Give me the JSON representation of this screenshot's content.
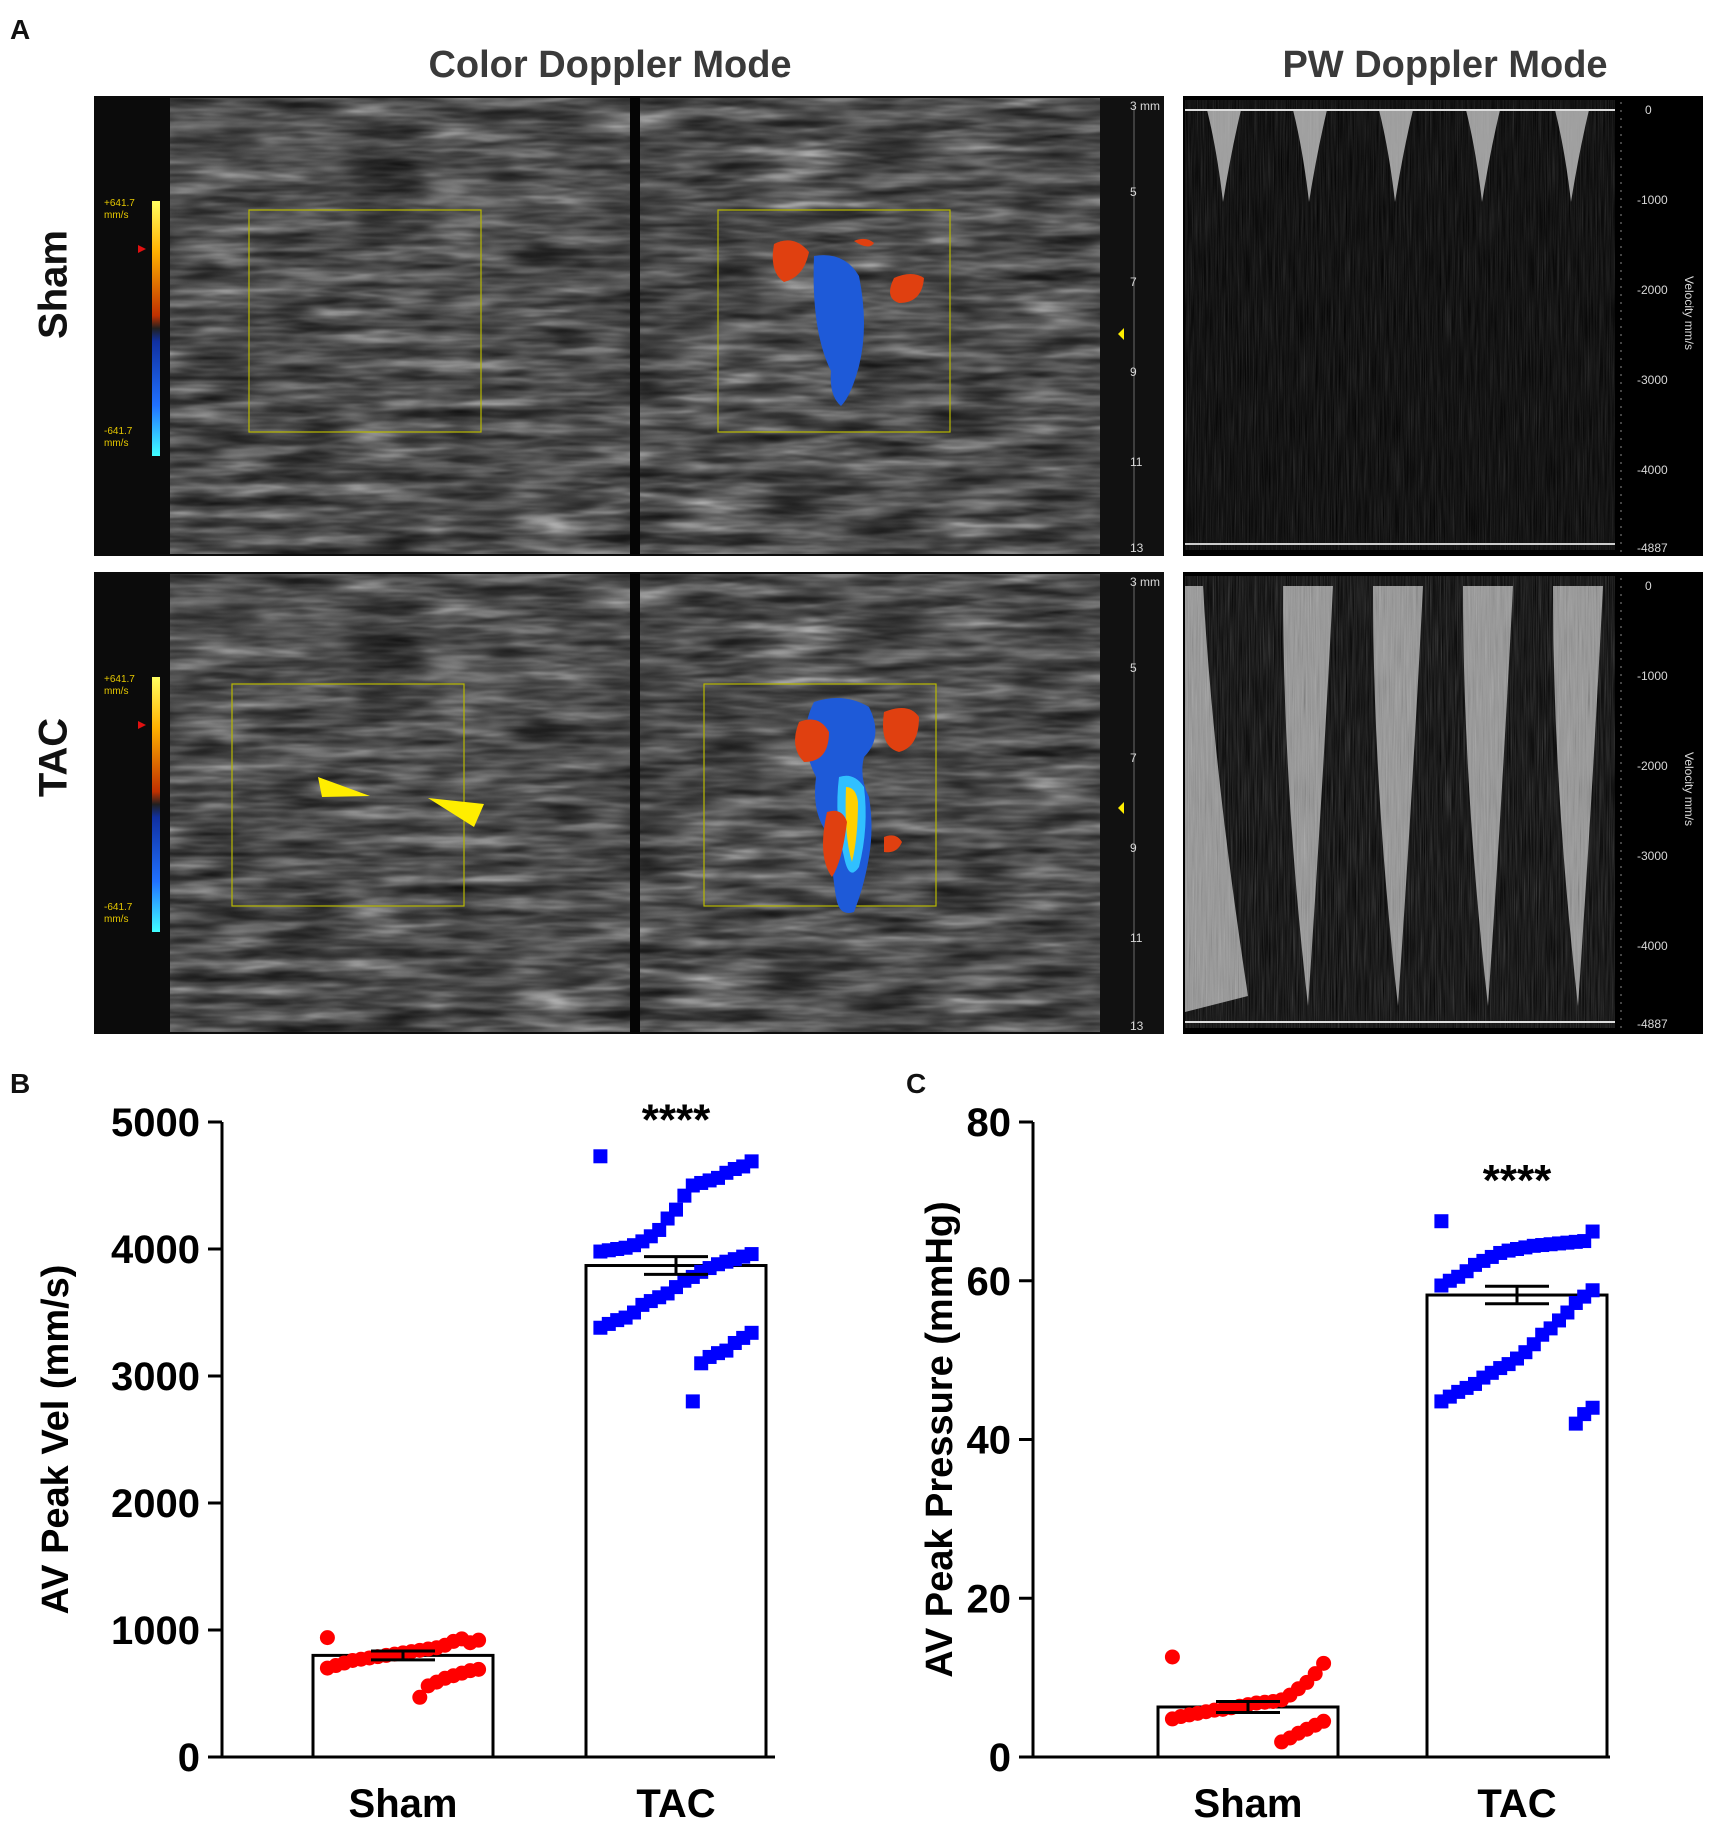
{
  "panels": {
    "a_label": "A",
    "b_label": "B",
    "c_label": "C",
    "color_doppler_title": "Color Doppler Mode",
    "pw_doppler_title": "PW Doppler Mode",
    "rows": [
      "Sham",
      "TAC"
    ]
  },
  "ultrasound": {
    "colorbar_top": "+641.7",
    "colorbar_bottom": "-641.7",
    "colorbar_unit": "mm/s",
    "depth_top_label": "3 mm",
    "depth_ticks": [
      "5",
      "7",
      "9",
      "11",
      "13"
    ],
    "velocity_axis_label": "Velocity mm/s",
    "velocity_ticks": [
      "0",
      "-1000",
      "-2000",
      "-3000",
      "-4000",
      "-4887"
    ],
    "colors": {
      "arrow": "#ffee00",
      "flow_red": "#e04010",
      "flow_blue": "#1e5ad8",
      "roi_box": "#b8b800"
    }
  },
  "chart_data": [
    {
      "type": "bar",
      "panel": "B",
      "categories": [
        "Sham",
        "TAC"
      ],
      "values": [
        800,
        3870
      ],
      "error": [
        35,
        70
      ],
      "ylabel": "AV Peak Vel (mm/s)",
      "ylim": [
        0,
        5000
      ],
      "yticks": [
        0,
        1000,
        2000,
        3000,
        4000,
        5000
      ],
      "significance": "****",
      "point_colors": {
        "Sham": "#ff0000",
        "TAC": "#0000ff"
      },
      "points": {
        "Sham": [
          940,
          920,
          900,
          930,
          910,
          880,
          860,
          850,
          840,
          830,
          820,
          810,
          800,
          790,
          780,
          770,
          760,
          740,
          720,
          700,
          690,
          680,
          660,
          640,
          620,
          590,
          560,
          470
        ],
        "TAC": [
          4730,
          4690,
          4650,
          4630,
          4600,
          4560,
          4540,
          4520,
          4500,
          4420,
          4310,
          4240,
          4150,
          4100,
          4060,
          4030,
          4010,
          4000,
          3990,
          3980,
          3960,
          3940,
          3920,
          3900,
          3880,
          3850,
          3820,
          3780,
          3750,
          3700,
          3650,
          3620,
          3590,
          3560,
          3500,
          3460,
          3440,
          3410,
          3380,
          3340,
          3300,
          3260,
          3200,
          3180,
          3150,
          3100,
          2800
        ]
      }
    },
    {
      "type": "bar",
      "panel": "C",
      "categories": [
        "Sham",
        "TAC"
      ],
      "values": [
        6.3,
        58.2
      ],
      "error": [
        0.7,
        1.1
      ],
      "ylabel": "AV Peak Pressure (mmHg)",
      "ylim": [
        0,
        80
      ],
      "yticks": [
        0,
        20,
        40,
        60,
        80
      ],
      "significance": "****",
      "point_colors": {
        "Sham": "#ff0000",
        "TAC": "#0000ff"
      },
      "points": {
        "Sham": [
          12.6,
          11.8,
          10.5,
          9.4,
          8.6,
          7.8,
          7.2,
          7.0,
          6.9,
          6.8,
          6.6,
          6.4,
          6.2,
          6.0,
          5.9,
          5.7,
          5.5,
          5.3,
          5.1,
          4.8,
          4.5,
          4.0,
          3.5,
          3.0,
          2.4,
          1.9
        ],
        "TAC": [
          67.5,
          66.2,
          65.0,
          64.9,
          64.8,
          64.7,
          64.6,
          64.5,
          64.4,
          64.2,
          64.0,
          63.8,
          63.5,
          63.0,
          62.5,
          62.0,
          61.2,
          60.5,
          60.0,
          59.4,
          58.8,
          58.0,
          57.2,
          56.0,
          55.0,
          54.0,
          53.2,
          52.0,
          51.0,
          50.2,
          49.5,
          49.0,
          48.4,
          47.8,
          47.0,
          46.5,
          46.0,
          45.4,
          44.8,
          44.0,
          43.2,
          42.0
        ]
      }
    }
  ]
}
